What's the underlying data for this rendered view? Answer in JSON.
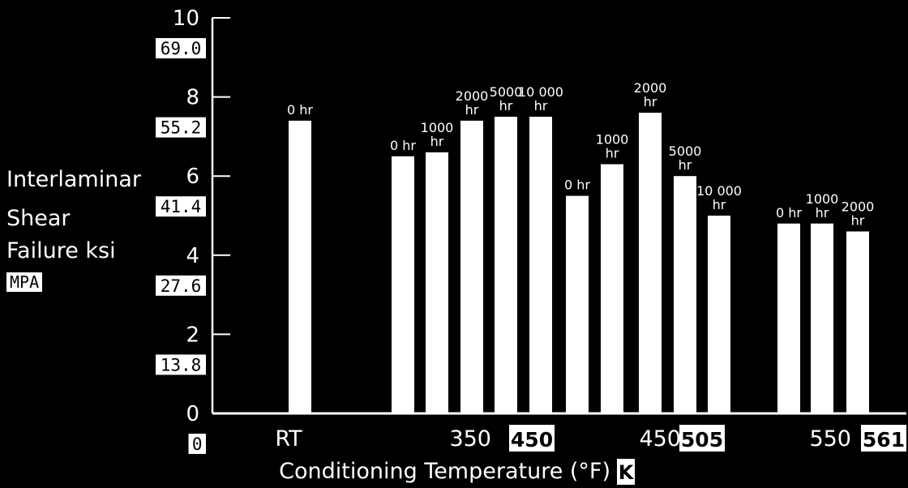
{
  "chart_data": {
    "type": "bar",
    "ylabel": [
      "Interlaminar",
      "Shear",
      "Failure  ksi"
    ],
    "ylabel_unit": "MPA",
    "xlabel": "Conditioning Temperature (°F)",
    "xlabel_unit": "K",
    "ylim": [
      0,
      10
    ],
    "ticks_ksi": [
      "0",
      "2",
      "4",
      "6",
      "8",
      "10"
    ],
    "ticks_mpa": [
      "0",
      "13.8",
      "27.6",
      "41.4",
      "55.2",
      "69.0"
    ],
    "groups": [
      {
        "label_f": "RT",
        "label_k": "",
        "bars": [
          {
            "label": "0 hr",
            "value": 7.4
          }
        ]
      },
      {
        "label_f": "350",
        "label_k": "450",
        "bars": [
          {
            "label": "0 hr",
            "value": 6.5
          },
          {
            "label": "1000\nhr",
            "value": 6.6
          },
          {
            "label": "2000\nhr",
            "value": 7.4
          },
          {
            "label": "5000\nhr",
            "value": 7.5
          },
          {
            "label": "10 000\nhr",
            "value": 7.5
          }
        ]
      },
      {
        "label_f": "450",
        "label_k": "505",
        "bars": [
          {
            "label": "0 hr",
            "value": 5.5
          },
          {
            "label": "1000\nhr",
            "value": 6.3
          },
          {
            "label": "2000\nhr",
            "value": 7.6
          },
          {
            "label": "5000\nhr",
            "value": 6.0
          },
          {
            "label": "10 000\nhr",
            "value": 5.0
          }
        ]
      },
      {
        "label_f": "550",
        "label_k": "561",
        "bars": [
          {
            "label": "0 hr",
            "value": 4.8
          },
          {
            "label": "1000\nhr",
            "value": 4.8
          },
          {
            "label": "2000\nhr",
            "value": 4.6
          }
        ]
      }
    ]
  }
}
